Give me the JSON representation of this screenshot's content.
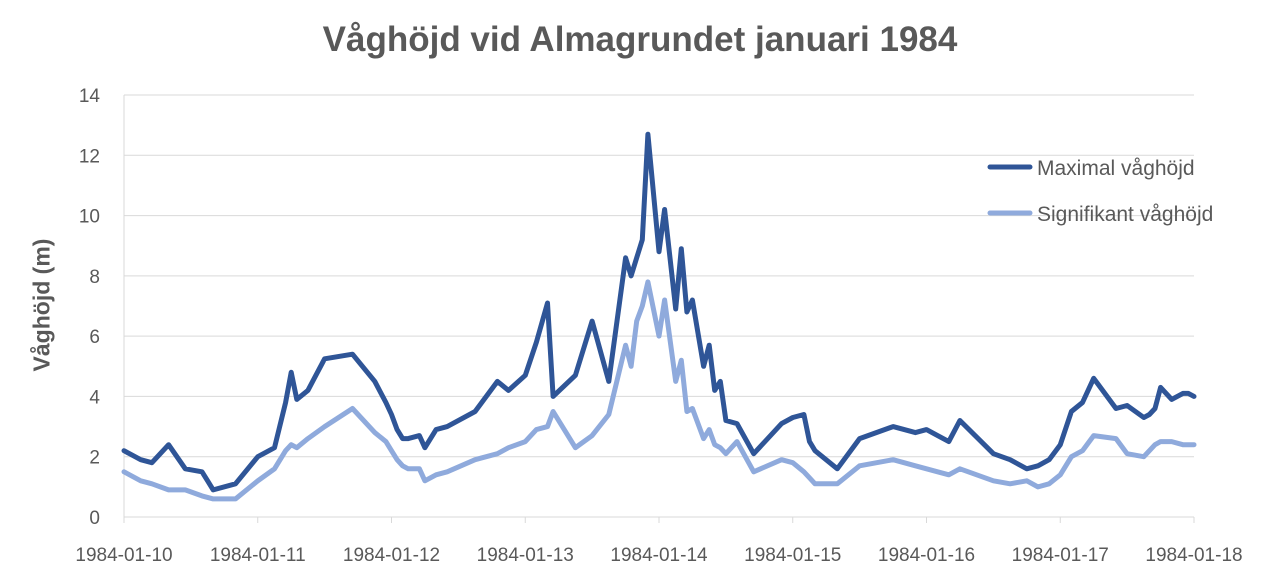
{
  "chart_data": {
    "type": "line",
    "title": "Våghöjd vid Almagrundet januari 1984",
    "xlabel": "",
    "ylabel": "Våghöjd (m)",
    "ylim": [
      0,
      14
    ],
    "yticks": [
      "0",
      "2",
      "4",
      "6",
      "8",
      "10",
      "12",
      "14"
    ],
    "xlim": [
      "1984-01-10",
      "1984-01-18"
    ],
    "xticks": [
      "1984-01-10",
      "1984-01-11",
      "1984-01-12",
      "1984-01-13",
      "1984-01-14",
      "1984-01-15",
      "1984-01-16",
      "1984-01-17",
      "1984-01-18"
    ],
    "grid": "horizontal",
    "legend": "right",
    "series": [
      {
        "name": "Maximal våghöjd",
        "color": "#2f5597",
        "x": [
          "1984-01-10 00:00",
          "1984-01-10 03:00",
          "1984-01-10 05:00",
          "1984-01-10 08:00",
          "1984-01-10 11:00",
          "1984-01-10 14:00",
          "1984-01-10 15:00",
          "1984-01-10 16:00",
          "1984-01-10 20:00",
          "1984-01-11 00:00",
          "1984-01-11 03:00",
          "1984-01-11 05:00",
          "1984-01-11 06:00",
          "1984-01-11 07:00",
          "1984-01-11 09:00",
          "1984-01-11 12:00",
          "1984-01-11 17:00",
          "1984-01-11 21:00",
          "1984-01-11 23:00",
          "1984-01-12 00:00",
          "1984-01-12 01:00",
          "1984-01-12 02:00",
          "1984-01-12 03:00",
          "1984-01-12 05:00",
          "1984-01-12 06:00",
          "1984-01-12 08:00",
          "1984-01-12 10:00",
          "1984-01-12 15:00",
          "1984-01-12 19:00",
          "1984-01-12 21:00",
          "1984-01-13 00:00",
          "1984-01-13 02:00",
          "1984-01-13 04:00",
          "1984-01-13 05:00",
          "1984-01-13 09:00",
          "1984-01-13 12:00",
          "1984-01-13 15:00",
          "1984-01-13 18:00",
          "1984-01-13 19:00",
          "1984-01-13 20:00",
          "1984-01-13 21:00",
          "1984-01-13 22:00",
          "1984-01-14 00:00",
          "1984-01-14 01:00",
          "1984-01-14 03:00",
          "1984-01-14 04:00",
          "1984-01-14 05:00",
          "1984-01-14 06:00",
          "1984-01-14 08:00",
          "1984-01-14 09:00",
          "1984-01-14 10:00",
          "1984-01-14 11:00",
          "1984-01-14 12:00",
          "1984-01-14 14:00",
          "1984-01-14 17:00",
          "1984-01-14 22:00",
          "1984-01-15 00:00",
          "1984-01-15 02:00",
          "1984-01-15 03:00",
          "1984-01-15 04:00",
          "1984-01-15 08:00",
          "1984-01-15 12:00",
          "1984-01-15 18:00",
          "1984-01-15 22:00",
          "1984-01-16 00:00",
          "1984-01-16 02:00",
          "1984-01-16 04:00",
          "1984-01-16 06:00",
          "1984-01-16 12:00",
          "1984-01-16 15:00",
          "1984-01-16 18:00",
          "1984-01-16 20:00",
          "1984-01-16 22:00",
          "1984-01-17 00:00",
          "1984-01-17 02:00",
          "1984-01-17 04:00",
          "1984-01-17 06:00",
          "1984-01-17 10:00",
          "1984-01-17 12:00",
          "1984-01-17 15:00",
          "1984-01-17 16:00",
          "1984-01-17 17:00",
          "1984-01-17 18:00",
          "1984-01-17 20:00",
          "1984-01-17 22:00",
          "1984-01-17 23:00",
          "1984-01-18 00:00"
        ],
        "values": [
          2.2,
          1.9,
          1.8,
          2.4,
          1.6,
          1.5,
          1.2,
          0.9,
          1.1,
          2.0,
          2.3,
          3.8,
          4.8,
          3.9,
          4.2,
          5.25,
          5.4,
          4.5,
          3.8,
          3.4,
          2.9,
          2.6,
          2.6,
          2.7,
          2.3,
          2.9,
          3.0,
          3.5,
          4.5,
          4.2,
          4.7,
          5.8,
          7.1,
          4.0,
          4.7,
          6.5,
          4.5,
          8.6,
          8.0,
          8.6,
          9.2,
          12.7,
          8.8,
          10.2,
          6.9,
          8.9,
          6.8,
          7.2,
          5.0,
          5.7,
          4.2,
          4.5,
          3.2,
          3.1,
          2.1,
          3.1,
          3.3,
          3.4,
          2.5,
          2.2,
          1.6,
          2.6,
          3.0,
          2.8,
          2.9,
          2.7,
          2.5,
          3.2,
          2.1,
          1.9,
          1.6,
          1.7,
          1.9,
          2.4,
          3.5,
          3.8,
          4.6,
          3.6,
          3.7,
          3.3,
          3.4,
          3.6,
          4.3,
          3.9,
          4.1,
          4.1,
          4.0
        ]
      },
      {
        "name": "Signifikant våghöjd",
        "color": "#8faadc",
        "x": [
          "1984-01-10 00:00",
          "1984-01-10 03:00",
          "1984-01-10 05:00",
          "1984-01-10 08:00",
          "1984-01-10 11:00",
          "1984-01-10 14:00",
          "1984-01-10 15:00",
          "1984-01-10 16:00",
          "1984-01-10 20:00",
          "1984-01-11 00:00",
          "1984-01-11 03:00",
          "1984-01-11 05:00",
          "1984-01-11 06:00",
          "1984-01-11 07:00",
          "1984-01-11 09:00",
          "1984-01-11 12:00",
          "1984-01-11 17:00",
          "1984-01-11 21:00",
          "1984-01-11 23:00",
          "1984-01-12 00:00",
          "1984-01-12 01:00",
          "1984-01-12 02:00",
          "1984-01-12 03:00",
          "1984-01-12 05:00",
          "1984-01-12 06:00",
          "1984-01-12 08:00",
          "1984-01-12 10:00",
          "1984-01-12 15:00",
          "1984-01-12 19:00",
          "1984-01-12 21:00",
          "1984-01-13 00:00",
          "1984-01-13 02:00",
          "1984-01-13 04:00",
          "1984-01-13 05:00",
          "1984-01-13 09:00",
          "1984-01-13 12:00",
          "1984-01-13 15:00",
          "1984-01-13 18:00",
          "1984-01-13 19:00",
          "1984-01-13 20:00",
          "1984-01-13 21:00",
          "1984-01-13 22:00",
          "1984-01-14 00:00",
          "1984-01-14 01:00",
          "1984-01-14 03:00",
          "1984-01-14 04:00",
          "1984-01-14 05:00",
          "1984-01-14 06:00",
          "1984-01-14 08:00",
          "1984-01-14 09:00",
          "1984-01-14 10:00",
          "1984-01-14 11:00",
          "1984-01-14 12:00",
          "1984-01-14 14:00",
          "1984-01-14 17:00",
          "1984-01-14 22:00",
          "1984-01-15 00:00",
          "1984-01-15 02:00",
          "1984-01-15 03:00",
          "1984-01-15 04:00",
          "1984-01-15 08:00",
          "1984-01-15 12:00",
          "1984-01-15 18:00",
          "1984-01-15 22:00",
          "1984-01-16 00:00",
          "1984-01-16 02:00",
          "1984-01-16 04:00",
          "1984-01-16 06:00",
          "1984-01-16 12:00",
          "1984-01-16 15:00",
          "1984-01-16 18:00",
          "1984-01-16 20:00",
          "1984-01-16 22:00",
          "1984-01-17 00:00",
          "1984-01-17 02:00",
          "1984-01-17 04:00",
          "1984-01-17 06:00",
          "1984-01-17 10:00",
          "1984-01-17 12:00",
          "1984-01-17 15:00",
          "1984-01-17 16:00",
          "1984-01-17 17:00",
          "1984-01-17 18:00",
          "1984-01-17 20:00",
          "1984-01-17 22:00",
          "1984-01-17 23:00",
          "1984-01-18 00:00"
        ],
        "values": [
          1.5,
          1.2,
          1.1,
          0.9,
          0.9,
          0.7,
          0.65,
          0.6,
          0.6,
          1.2,
          1.6,
          2.2,
          2.4,
          2.3,
          2.6,
          3.0,
          3.6,
          2.8,
          2.5,
          2.2,
          1.9,
          1.7,
          1.6,
          1.6,
          1.2,
          1.4,
          1.5,
          1.9,
          2.1,
          2.3,
          2.5,
          2.9,
          3.0,
          3.5,
          2.3,
          2.7,
          3.4,
          5.7,
          5.0,
          6.5,
          7.0,
          7.8,
          6.0,
          7.2,
          4.5,
          5.2,
          3.5,
          3.6,
          2.6,
          2.9,
          2.4,
          2.3,
          2.1,
          2.5,
          1.5,
          1.9,
          1.8,
          1.5,
          1.3,
          1.1,
          1.1,
          1.7,
          1.9,
          1.7,
          1.6,
          1.5,
          1.4,
          1.6,
          1.2,
          1.1,
          1.2,
          1.0,
          1.1,
          1.4,
          2.0,
          2.2,
          2.7,
          2.6,
          2.1,
          2.0,
          2.2,
          2.4,
          2.5,
          2.5,
          2.4,
          2.4,
          2.4
        ]
      }
    ]
  }
}
